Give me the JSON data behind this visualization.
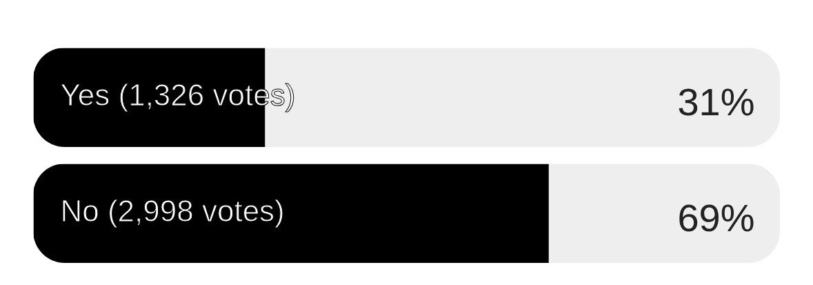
{
  "chart_data": {
    "type": "bar",
    "orientation": "horizontal",
    "tick_labels": "y",
    "categories": [
      "Yes (1,326 votes)",
      "No (2,998 votes)"
    ],
    "series": [
      {
        "color": "#000000",
        "values": [
          31,
          69
        ],
        "value_labels": [
          "31%",
          "69%"
        ]
      }
    ]
  }
}
